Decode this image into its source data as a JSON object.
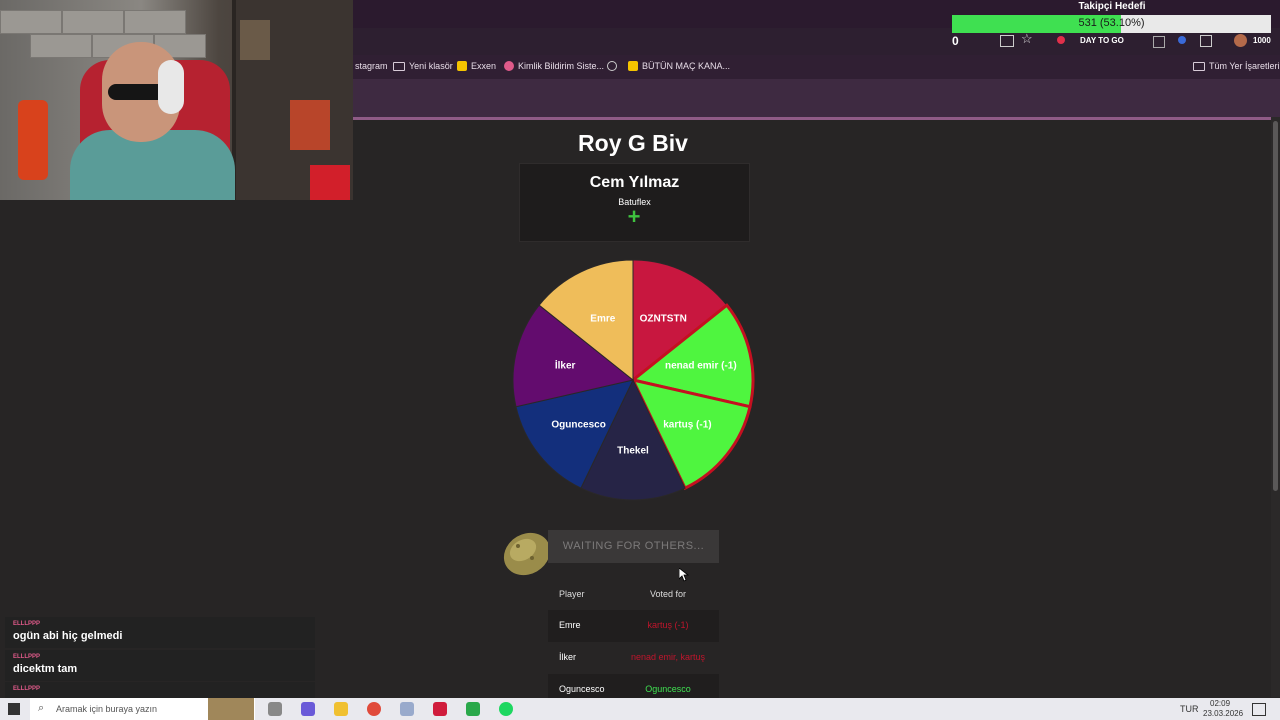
{
  "bookmarks": [
    "stagram",
    "Yeni klasör",
    "Exxen",
    "Kimlik Bildirim Siste...",
    "BÜTÜN MAÇ KANA...",
    "Tüm Yer İşaretleri"
  ],
  "toolbar": {
    "counter": "0",
    "day_label": "DAY TO GO",
    "coins": "1000"
  },
  "goal": {
    "title": "Takipçi Hedefi",
    "text": "531 (53.10%)",
    "progress": 0.531
  },
  "game": {
    "title": "Roy G Biv",
    "card_name": "Cem Yılmaz",
    "card_sub": "Batuflex",
    "wheel": [
      {
        "label": "OZNTSTN",
        "color": "#c8173f"
      },
      {
        "label": "nenad emir (-1)",
        "color": "#4ff53f"
      },
      {
        "label": "kartuş (-1)",
        "color": "#4ff53f"
      },
      {
        "label": "Thekel",
        "color": "#262446"
      },
      {
        "label": "Oguncesco",
        "color": "#132f7c"
      },
      {
        "label": "İlker",
        "color": "#630c6e"
      },
      {
        "label": "Emre",
        "color": "#efbd5a"
      }
    ],
    "wait_button": "WAITING FOR OTHERS...",
    "votes_header": {
      "player": "Player",
      "voted": "Voted for"
    },
    "votes": [
      {
        "player": "Emre",
        "voted": "kartuş (-1)",
        "correct": false
      },
      {
        "player": "İlker",
        "voted": "nenad emir, kartuş",
        "correct": false
      },
      {
        "player": "Oguncesco",
        "voted": "Oguncesco",
        "correct": true
      }
    ]
  },
  "chat": [
    {
      "user": "ELLLPPP",
      "msg": "ogün abi hiç gelmedi"
    },
    {
      "user": "ELLLPPP",
      "msg": "dicektm tam"
    },
    {
      "user": "ELLLPPP",
      "msg": ""
    }
  ],
  "taskbar": {
    "search_placeholder": "Aramak için buraya yazın",
    "lang": "TUR",
    "time": "02:09",
    "date": "23.03.2026"
  }
}
